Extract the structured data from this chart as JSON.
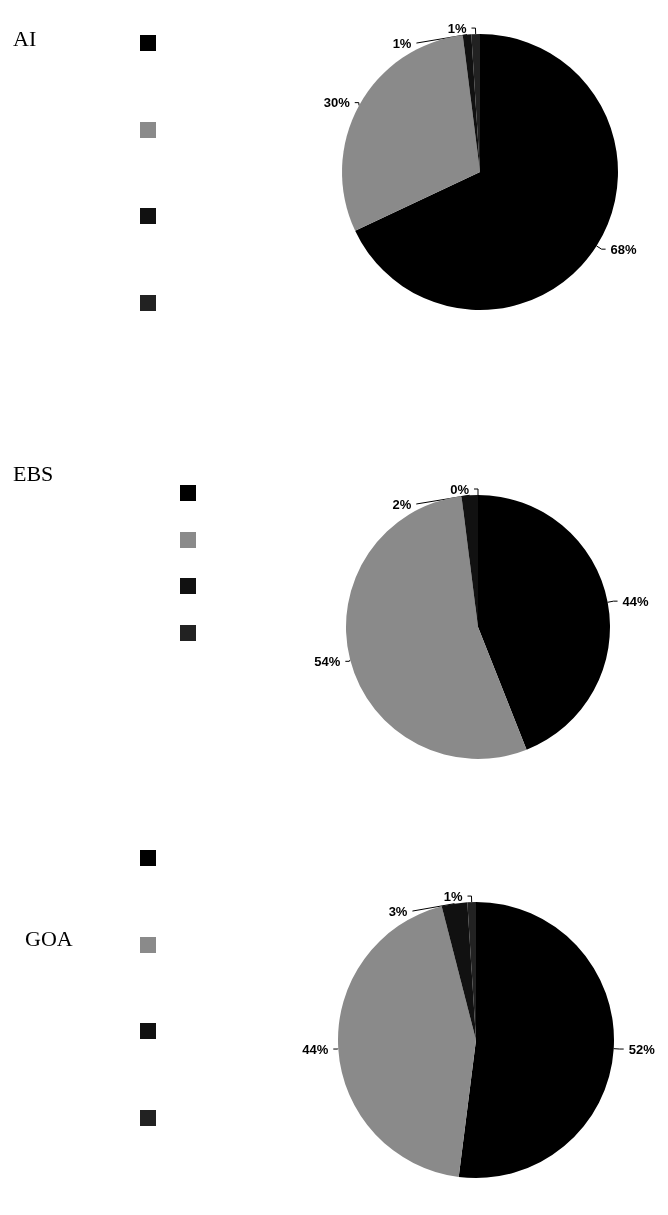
{
  "chart_data": [
    {
      "type": "pie",
      "title": "AI",
      "categories": [
        null,
        null,
        null,
        null
      ],
      "values": [
        68,
        30,
        1,
        1
      ],
      "colors": [
        "#000000",
        "#8a8a8a",
        "#111111",
        "#222222"
      ],
      "value_labels": [
        "68%",
        "30%",
        "1%",
        "1%"
      ]
    },
    {
      "type": "pie",
      "title": "EBS",
      "categories": [
        null,
        null,
        null,
        null
      ],
      "values": [
        44,
        54,
        2,
        0
      ],
      "colors": [
        "#000000",
        "#8a8a8a",
        "#111111",
        "#222222"
      ],
      "value_labels": [
        "44%",
        "54%",
        "2%",
        "0%"
      ]
    },
    {
      "type": "pie",
      "title": "GOA",
      "categories": [
        null,
        null,
        null,
        null
      ],
      "values": [
        52,
        44,
        3,
        1
      ],
      "colors": [
        "#000000",
        "#8a8a8a",
        "#111111",
        "#222222"
      ],
      "value_labels": [
        "52%",
        "44%",
        "3%",
        "1%"
      ]
    }
  ]
}
